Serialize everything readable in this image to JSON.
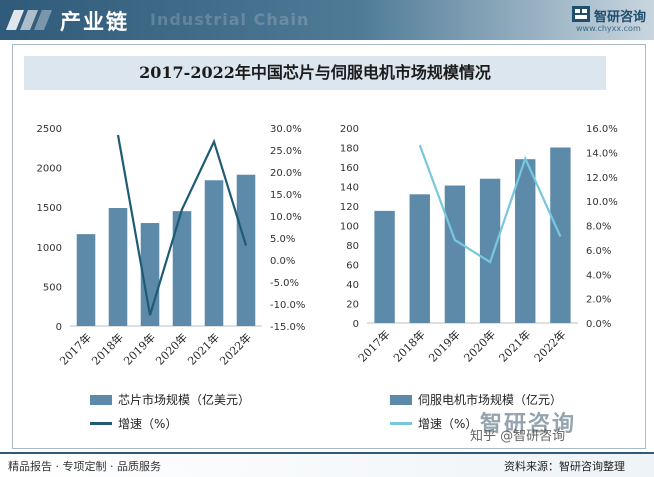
{
  "header": {
    "title": "产业链",
    "watermark": "Industrial Chain"
  },
  "logo": {
    "name": "智研咨询",
    "url": "www.chyxx.com"
  },
  "chart_title": "2017-2022年中国芯片与伺服电机市场规模情况",
  "chart_data": [
    {
      "type": "bar",
      "categories": [
        "2017年",
        "2018年",
        "2019年",
        "2020年",
        "2021年",
        "2022年"
      ],
      "series": [
        {
          "name": "芯片市场规模（亿美元）",
          "type": "bar",
          "axis": "left",
          "values": [
            1160,
            1490,
            1300,
            1450,
            1840,
            1910
          ],
          "color": "#5d8aa8"
        },
        {
          "name": "增速（%）",
          "type": "line",
          "axis": "right",
          "values": [
            null,
            28.4,
            -12.5,
            11.5,
            26.9,
            3.3
          ],
          "color": "#1f5b75"
        }
      ],
      "ylim": [
        0,
        2500
      ],
      "yticks": [
        "0",
        "500",
        "1000",
        "1500",
        "2000",
        "2500"
      ],
      "y2lim": [
        -15,
        30
      ],
      "y2ticks": [
        "-15.0%",
        "-10.0%",
        "-5.0%",
        "0.0%",
        "5.0%",
        "10.0%",
        "15.0%",
        "20.0%",
        "25.0%",
        "30.0%"
      ],
      "grid": false,
      "legend": "bottom"
    },
    {
      "type": "bar",
      "categories": [
        "2017年",
        "2018年",
        "2019年",
        "2020年",
        "2021年",
        "2022年"
      ],
      "series": [
        {
          "name": "伺服电机市场规模（亿元）",
          "type": "bar",
          "axis": "left",
          "values": [
            115,
            132,
            141,
            148,
            168,
            180
          ],
          "color": "#5d8aa8"
        },
        {
          "name": "增速（%）",
          "type": "line",
          "axis": "right",
          "values": [
            null,
            14.6,
            6.8,
            5.0,
            13.5,
            7.1
          ],
          "color": "#77c8de"
        }
      ],
      "ylim": [
        0,
        200
      ],
      "yticks": [
        "0",
        "20",
        "40",
        "60",
        "80",
        "100",
        "120",
        "140",
        "160",
        "180",
        "200"
      ],
      "y2lim": [
        0,
        16
      ],
      "y2ticks": [
        "0.0%",
        "2.0%",
        "4.0%",
        "6.0%",
        "8.0%",
        "10.0%",
        "12.0%",
        "14.0%",
        "16.0%"
      ],
      "grid": false,
      "legend": "bottom"
    }
  ],
  "footer": {
    "left": "精品报告 · 专项定制 · 品质服务",
    "right": "资料来源：智研咨询整理",
    "zhihu": "知乎 @智研咨询",
    "watermark": "智研咨询"
  }
}
